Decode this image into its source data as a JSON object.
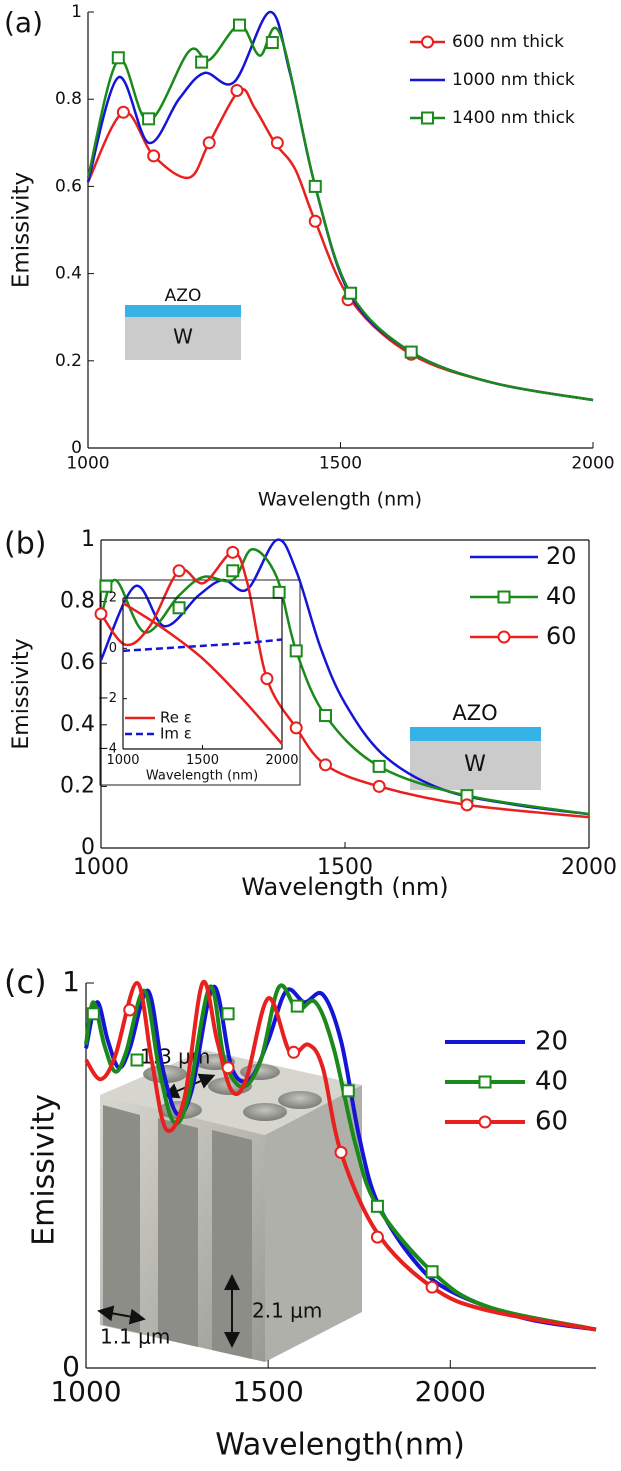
{
  "chart_data": [
    {
      "type": "line",
      "panel_label": "(a)",
      "ylabel": "Emissivity",
      "xlabel": "Wavelength (nm)",
      "xlim": [
        1000,
        2000
      ],
      "xticks": [
        1000,
        1500,
        2000
      ],
      "ylim": [
        0,
        1
      ],
      "yticks": [
        0,
        0.2,
        0.4,
        0.6,
        0.8,
        1
      ],
      "legend": "upper right",
      "grid": false,
      "annotations": [
        "AZO",
        "W"
      ],
      "series": [
        {
          "name": "600 nm thick",
          "color": "#e8201e",
          "marker": "o",
          "x": [
            1000,
            1070,
            1130,
            1200,
            1240,
            1300,
            1330,
            1370,
            1410,
            1450,
            1520,
            1640,
            1800,
            2000
          ],
          "values": [
            0.61,
            0.77,
            0.67,
            0.62,
            0.7,
            0.82,
            0.78,
            0.7,
            0.64,
            0.52,
            0.34,
            0.215,
            0.15,
            0.11
          ],
          "marker_x": [
            1070,
            1130,
            1240,
            1295,
            1375,
            1450,
            1515,
            1640
          ],
          "marker_values": [
            0.77,
            0.67,
            0.7,
            0.82,
            0.7,
            0.52,
            0.34,
            0.215
          ]
        },
        {
          "name": "1000 nm thick",
          "color": "#1515d6",
          "marker": "none",
          "x": [
            1000,
            1060,
            1120,
            1180,
            1230,
            1290,
            1360,
            1400,
            1450,
            1520,
            1640,
            1800,
            2000
          ],
          "values": [
            0.61,
            0.85,
            0.7,
            0.8,
            0.86,
            0.84,
            1.0,
            0.86,
            0.6,
            0.35,
            0.22,
            0.15,
            0.11
          ]
        },
        {
          "name": "1400 nm thick",
          "color": "#1a8a1a",
          "marker": "s",
          "x": [
            1000,
            1060,
            1120,
            1200,
            1240,
            1300,
            1340,
            1380,
            1450,
            1520,
            1640,
            1800,
            2000
          ],
          "values": [
            0.62,
            0.89,
            0.75,
            0.91,
            0.89,
            0.97,
            0.9,
            0.95,
            0.6,
            0.355,
            0.22,
            0.15,
            0.11
          ],
          "marker_x": [
            1060,
            1120,
            1225,
            1300,
            1365,
            1450,
            1520,
            1640
          ],
          "marker_values": [
            0.895,
            0.755,
            0.885,
            0.97,
            0.93,
            0.6,
            0.355,
            0.22
          ]
        }
      ]
    },
    {
      "type": "line",
      "panel_label": "(b)",
      "ylabel": "Emissivity",
      "xlabel": "Wavelength (nm)",
      "xlim": [
        1000,
        2000
      ],
      "xticks": [
        1000,
        1500,
        2000
      ],
      "ylim": [
        0,
        1
      ],
      "yticks": [
        0,
        0.2,
        0.4,
        0.6,
        0.8,
        1
      ],
      "legend": "upper right",
      "grid": false,
      "annotations": [
        "AZO",
        "W"
      ],
      "series": [
        {
          "name": "20",
          "color": "#1515d6",
          "marker": "none",
          "x": [
            1000,
            1070,
            1130,
            1200,
            1250,
            1300,
            1360,
            1400,
            1450,
            1500,
            1580,
            1700,
            1850,
            2000
          ],
          "values": [
            0.61,
            0.85,
            0.72,
            0.82,
            0.87,
            0.84,
            1.0,
            0.9,
            0.65,
            0.47,
            0.3,
            0.19,
            0.14,
            0.11
          ]
        },
        {
          "name": "40",
          "color": "#1a8a1a",
          "marker": "s",
          "x": [
            1000,
            1030,
            1090,
            1160,
            1210,
            1270,
            1310,
            1360,
            1400,
            1460,
            1570,
            1750,
            2000
          ],
          "values": [
            0.75,
            0.87,
            0.7,
            0.82,
            0.88,
            0.87,
            0.97,
            0.88,
            0.64,
            0.43,
            0.265,
            0.17,
            0.11
          ],
          "marker_x": [
            1010,
            1160,
            1270,
            1365,
            1400,
            1460,
            1570,
            1750
          ],
          "marker_values": [
            0.85,
            0.78,
            0.9,
            0.83,
            0.64,
            0.43,
            0.265,
            0.17
          ]
        },
        {
          "name": "60",
          "color": "#e8201e",
          "marker": "o",
          "x": [
            1000,
            1050,
            1100,
            1160,
            1210,
            1270,
            1300,
            1340,
            1400,
            1460,
            1570,
            1750,
            2000
          ],
          "values": [
            0.76,
            0.66,
            0.72,
            0.9,
            0.86,
            0.96,
            0.86,
            0.55,
            0.39,
            0.27,
            0.2,
            0.14,
            0.1
          ],
          "marker_x": [
            1000,
            1160,
            1270,
            1340,
            1400,
            1460,
            1570,
            1750
          ],
          "marker_values": [
            0.76,
            0.9,
            0.96,
            0.55,
            0.39,
            0.27,
            0.2,
            0.14
          ]
        }
      ],
      "inset": {
        "type": "line",
        "xlabel": "Wavelength (nm)",
        "xlim": [
          1000,
          2000
        ],
        "xticks": [
          1000,
          1500,
          2000
        ],
        "ylim": [
          -4,
          2
        ],
        "yticks": [
          2,
          0,
          {
            "value": -2,
            "label": "−2"
          },
          {
            "value": -4,
            "label": "−4"
          }
        ],
        "legend": "lower left",
        "series": [
          {
            "name": "Re ε",
            "color": "#e8201e",
            "dash": false,
            "x": [
              1000,
              1250,
              1500,
              1750,
              2000
            ],
            "values": [
              1.8,
              0.8,
              -0.4,
              -2.0,
              -3.8
            ]
          },
          {
            "name": "Im ε",
            "color": "#1515d6",
            "dash": true,
            "x": [
              1000,
              1250,
              1500,
              1750,
              2000
            ],
            "values": [
              -0.1,
              0.0,
              0.1,
              0.2,
              0.35
            ]
          }
        ]
      }
    },
    {
      "type": "line",
      "panel_label": "(c)",
      "ylabel": "Emissivity",
      "xlabel": "Wavelength(nm)",
      "xlim": [
        1000,
        2400
      ],
      "xticks": [
        1000,
        1500,
        2000
      ],
      "ylim": [
        0,
        1
      ],
      "yticks": [
        0,
        1
      ],
      "legend": "upper right",
      "grid": false,
      "annotations": [
        "1.3 μm",
        "1.1 μm",
        "2.1 μm"
      ],
      "series": [
        {
          "name": "20",
          "color": "#1515d6",
          "marker": "none",
          "x": [
            1000,
            1030,
            1060,
            1090,
            1120,
            1170,
            1210,
            1250,
            1290,
            1350,
            1400,
            1450,
            1500,
            1550,
            1600,
            1650,
            1700,
            1750,
            1800,
            1900,
            2000,
            2200,
            2400
          ],
          "values": [
            0.83,
            0.95,
            0.85,
            0.78,
            0.83,
            0.98,
            0.78,
            0.66,
            0.72,
            0.99,
            0.78,
            0.75,
            0.85,
            0.98,
            0.95,
            0.97,
            0.85,
            0.6,
            0.43,
            0.28,
            0.2,
            0.13,
            0.1
          ]
        },
        {
          "name": "40",
          "color": "#1a8a1a",
          "marker": "s",
          "x": [
            1000,
            1020,
            1050,
            1080,
            1110,
            1160,
            1200,
            1240,
            1280,
            1340,
            1380,
            1430,
            1480,
            1530,
            1580,
            1630,
            1680,
            1740,
            1800,
            1950,
            2100,
            2400
          ],
          "values": [
            0.84,
            0.95,
            0.84,
            0.77,
            0.82,
            0.98,
            0.78,
            0.64,
            0.7,
            0.99,
            0.8,
            0.73,
            0.8,
            0.99,
            0.93,
            0.95,
            0.83,
            0.58,
            0.42,
            0.25,
            0.16,
            0.1
          ],
          "marker_x": [
            1020,
            1140,
            1390,
            1580,
            1720,
            1800,
            1950
          ],
          "marker_values": [
            0.92,
            0.8,
            0.92,
            0.94,
            0.72,
            0.42,
            0.25
          ]
        },
        {
          "name": "60",
          "color": "#e8201e",
          "marker": "o",
          "x": [
            1000,
            1040,
            1080,
            1140,
            1180,
            1220,
            1270,
            1320,
            1360,
            1400,
            1440,
            1500,
            1560,
            1610,
            1650,
            1700,
            1800,
            1950,
            2100,
            2400
          ],
          "values": [
            0.8,
            0.75,
            0.81,
            1.0,
            0.8,
            0.62,
            0.7,
            1.0,
            0.85,
            0.72,
            0.75,
            0.96,
            0.82,
            0.84,
            0.78,
            0.56,
            0.35,
            0.21,
            0.15,
            0.1
          ],
          "marker_x": [
            1120,
            1390,
            1570,
            1700,
            1800,
            1950
          ],
          "marker_values": [
            0.93,
            0.78,
            0.82,
            0.56,
            0.34,
            0.21
          ]
        }
      ]
    }
  ]
}
